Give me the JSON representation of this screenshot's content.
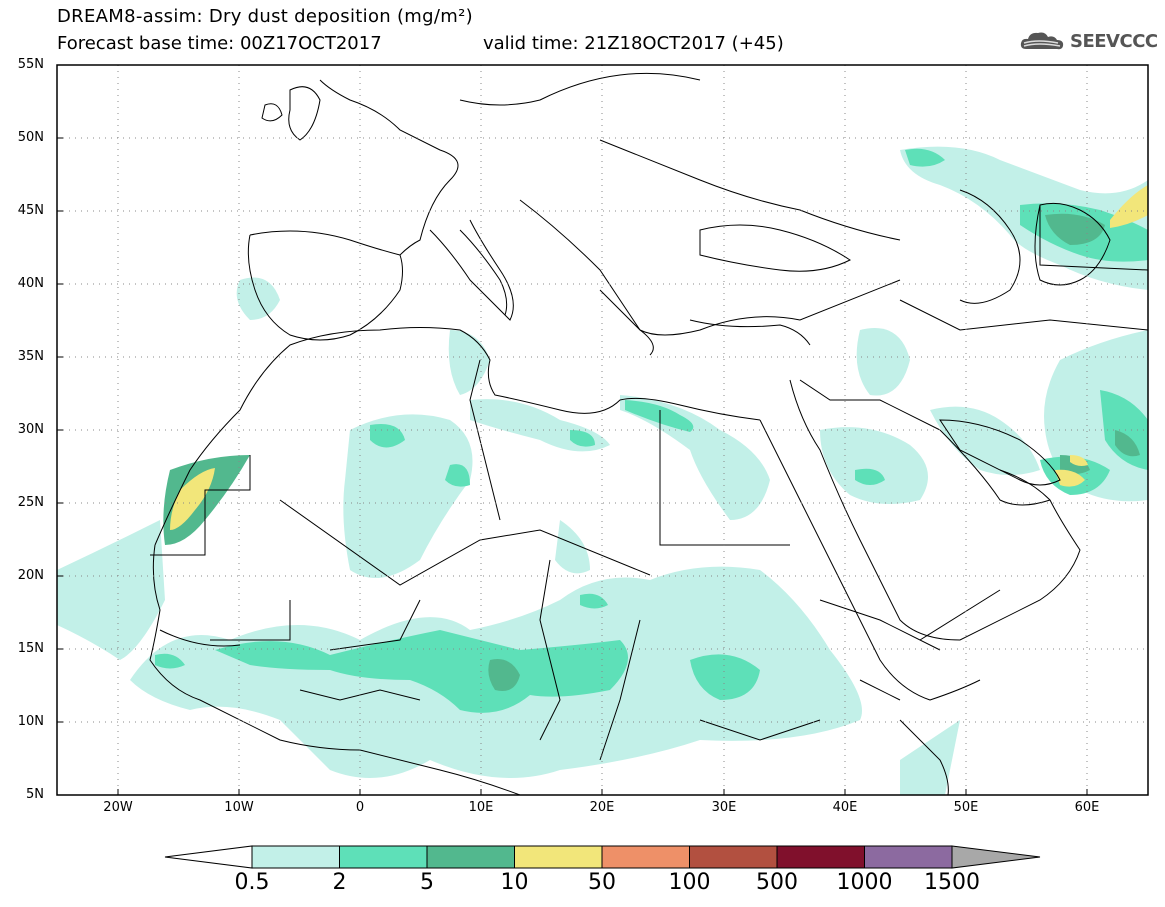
{
  "title": {
    "line1": "DREAM8-assim: Dry dust deposition (mg/m²)",
    "base_time": "Forecast base time: 00Z17OCT2017",
    "valid_time": "valid time: 21Z18OCT2017 (+45)"
  },
  "logo": {
    "text": "SEEVCCC",
    "icon": "cloud-icon"
  },
  "map": {
    "lat_labels": [
      "55N",
      "50N",
      "45N",
      "40N",
      "35N",
      "30N",
      "25N",
      "20N",
      "15N",
      "10N",
      "5N"
    ],
    "lon_labels": [
      "20W",
      "10W",
      "0",
      "10E",
      "20E",
      "30E",
      "40E",
      "50E",
      "60E"
    ],
    "lat_range": [
      5,
      55
    ],
    "lon_range": [
      -25,
      65
    ],
    "grid": "dotted"
  },
  "legend": {
    "thresholds": [
      "0.5",
      "2",
      "5",
      "10",
      "50",
      "100",
      "500",
      "1000",
      "1500"
    ],
    "colors": [
      "#c2f0e8",
      "#5ee0b8",
      "#52b88e",
      "#f2e67a",
      "#ee9068",
      "#b25040",
      "#80102c",
      "#8c6aa0",
      "#a8a8a8"
    ],
    "units": "mg/m²"
  },
  "colors": {
    "level1": "#c2f0e8",
    "level2": "#5ee0b8",
    "level3": "#52b88e",
    "level4": "#f2e67a",
    "level5": "#ee9068",
    "level6": "#b25040"
  }
}
